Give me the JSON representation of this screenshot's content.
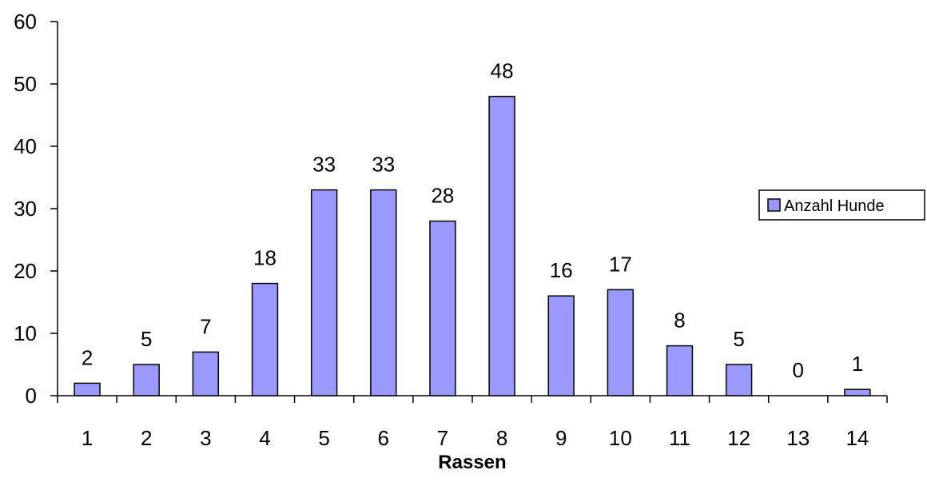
{
  "chart_data": {
    "type": "bar",
    "title": "",
    "xlabel": "Rassen",
    "ylabel": "",
    "categories": [
      "1",
      "2",
      "3",
      "4",
      "5",
      "6",
      "7",
      "8",
      "9",
      "10",
      "11",
      "12",
      "13",
      "14"
    ],
    "series": [
      {
        "name": "Anzahl Hunde",
        "values": [
          2,
          5,
          7,
          18,
          33,
          33,
          28,
          48,
          16,
          17,
          8,
          5,
          0,
          1
        ],
        "color": "#9999ff"
      }
    ],
    "ylim": [
      0,
      60
    ],
    "yticks": [
      0,
      10,
      20,
      30,
      40,
      50,
      60
    ],
    "grid": false,
    "legend_position": "right",
    "data_labels": true
  }
}
